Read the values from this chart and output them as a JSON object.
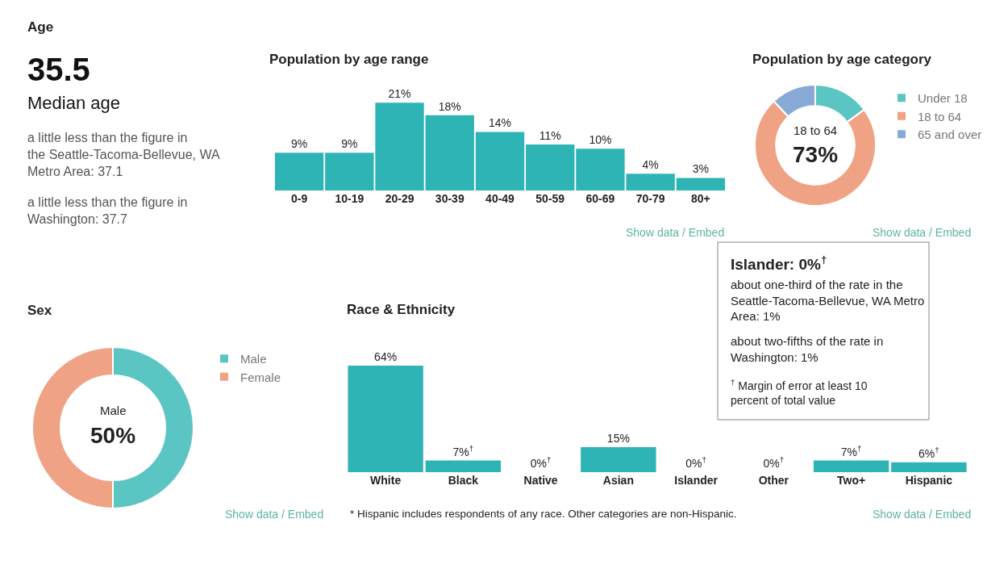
{
  "chart_data": [
    {
      "type": "other",
      "title": "Age",
      "annotations": [
        "35.5",
        "Median age",
        "a little less than the figure in the Seattle-Tacoma-Bellevue, WA Metro Area: 37.1",
        "a little less than the figure in Washington: 37.7"
      ]
    },
    {
      "type": "bar",
      "title": "Population by age range",
      "categories": [
        "0-9",
        "10-19",
        "20-29",
        "30-39",
        "40-49",
        "50-59",
        "60-69",
        "70-79",
        "80+"
      ],
      "values": [
        9,
        9,
        21,
        18,
        14,
        11,
        10,
        4,
        3
      ],
      "value_labels": [
        "9%",
        "9%",
        "21%",
        "18%",
        "14%",
        "11%",
        "10%",
        "4%",
        "3%"
      ],
      "color": "#2eb4b4",
      "annotations": [
        "Show data / Embed"
      ]
    },
    {
      "type": "donut",
      "title": "Population by age category",
      "categories": [
        "Under 18",
        "18 to 64",
        "65 and over"
      ],
      "values": [
        15,
        73,
        12
      ],
      "colors": [
        "#5bc5c3",
        "#efa284",
        "#87aad6"
      ],
      "legend": "right",
      "annotations": [
        "18 to 64",
        "73%",
        "Show data / Embed"
      ]
    },
    {
      "type": "donut",
      "title": "Sex",
      "categories": [
        "Male",
        "Female"
      ],
      "values": [
        50,
        50
      ],
      "colors": [
        "#5bc5c3",
        "#efa284"
      ],
      "legend": "right",
      "annotations": [
        "Male",
        "50%",
        "Show data / Embed"
      ]
    },
    {
      "type": "bar",
      "title": "Race & Ethnicity",
      "categories": [
        "White",
        "Black",
        "Native",
        "Asian",
        "Islander",
        "Other",
        "Two+",
        "Hispanic"
      ],
      "values": [
        64,
        7,
        0,
        15,
        0,
        0,
        7,
        6
      ],
      "value_labels": [
        "64%",
        "7%$^{†}$",
        "0%$^{†}$",
        "15%",
        "0%$^{†}$",
        "0%$^{†}$",
        "7%$^{†}$",
        "6%$^{†}$"
      ],
      "color": "#2eb4b4",
      "annotations": [
        "* Hispanic includes respondents of any race. Other categories are non-Hispanic.",
        "Show data / Embed"
      ]
    },
    {
      "type": "other",
      "title": "Islander: 0%$^{†}$",
      "annotations": [
        "about one-third of the rate in the Seattle-Tacoma-Bellevue, WA Metro Area: 1%",
        "about two-fifths of the rate in Washington: 1%",
        "$^{†}$ Margin of error at least 10 percent of total value"
      ]
    }
  ]
}
